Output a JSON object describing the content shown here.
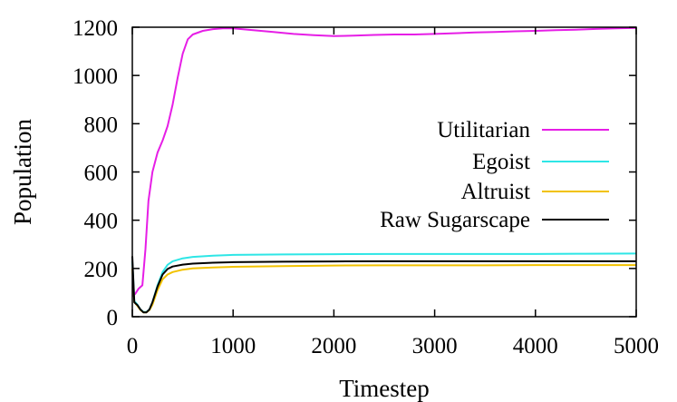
{
  "chart_data": {
    "type": "line",
    "title": "",
    "xlabel": "Timestep",
    "ylabel": "Population",
    "xlim": [
      0,
      5000
    ],
    "ylim": [
      0,
      1200
    ],
    "xticks": [
      0,
      1000,
      2000,
      3000,
      4000,
      5000
    ],
    "yticks": [
      0,
      200,
      400,
      600,
      800,
      1000,
      1200
    ],
    "grid": false,
    "legend_position": "right",
    "series": [
      {
        "name": "Utilitarian",
        "color": "#e61ee6",
        "x": [
          0,
          30,
          60,
          100,
          130,
          160,
          200,
          250,
          300,
          350,
          400,
          450,
          500,
          550,
          600,
          700,
          800,
          900,
          1000,
          1200,
          1400,
          1600,
          1800,
          2000,
          2200,
          2400,
          2600,
          2800,
          3000,
          3200,
          3400,
          3600,
          3800,
          4000,
          4200,
          4400,
          4600,
          4800,
          5000
        ],
        "y": [
          85,
          95,
          115,
          130,
          280,
          480,
          600,
          680,
          730,
          790,
          880,
          990,
          1090,
          1150,
          1170,
          1185,
          1192,
          1195,
          1195,
          1188,
          1180,
          1172,
          1167,
          1163,
          1165,
          1168,
          1170,
          1170,
          1172,
          1175,
          1178,
          1180,
          1183,
          1185,
          1188,
          1190,
          1193,
          1195,
          1197
        ]
      },
      {
        "name": "Egoist",
        "color": "#2ee6e6",
        "x": [
          0,
          20,
          50,
          80,
          110,
          140,
          170,
          200,
          250,
          300,
          350,
          400,
          500,
          600,
          800,
          1000,
          1500,
          2000,
          2500,
          3000,
          3500,
          4000,
          4500,
          5000
        ],
        "y": [
          230,
          65,
          50,
          30,
          20,
          20,
          30,
          60,
          130,
          185,
          215,
          230,
          242,
          248,
          253,
          256,
          258,
          259,
          260,
          260,
          260,
          260,
          261,
          262
        ]
      },
      {
        "name": "Altruist",
        "color": "#f2c200",
        "x": [
          0,
          20,
          50,
          80,
          110,
          140,
          170,
          200,
          250,
          300,
          350,
          400,
          500,
          600,
          800,
          1000,
          1500,
          2000,
          2500,
          3000,
          3500,
          4000,
          4500,
          5000
        ],
        "y": [
          200,
          60,
          45,
          28,
          18,
          18,
          28,
          50,
          110,
          155,
          175,
          185,
          195,
          200,
          204,
          207,
          210,
          212,
          213,
          213,
          213,
          214,
          214,
          214
        ]
      },
      {
        "name": "Raw Sugarscape",
        "color": "#000000",
        "x": [
          0,
          20,
          50,
          80,
          110,
          140,
          170,
          200,
          250,
          300,
          350,
          400,
          500,
          600,
          800,
          1000,
          1500,
          2000,
          2500,
          3000,
          3500,
          4000,
          4500,
          5000
        ],
        "y": [
          250,
          60,
          48,
          30,
          18,
          18,
          30,
          60,
          125,
          175,
          198,
          208,
          216,
          220,
          224,
          226,
          228,
          229,
          230,
          230,
          230,
          230,
          230,
          230
        ]
      }
    ]
  }
}
